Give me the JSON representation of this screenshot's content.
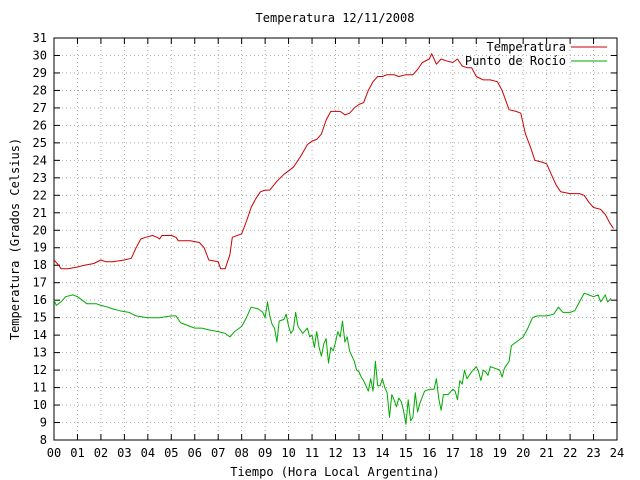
{
  "chart_data": {
    "type": "line",
    "title": "Temperatura 12/11/2008",
    "xlabel": "Tiempo (Hora Local Argentina)",
    "ylabel": "Temperatura (Grados Celsius)",
    "xlim": [
      0,
      24
    ],
    "ylim": [
      8,
      31
    ],
    "x_ticks": [
      "00",
      "01",
      "02",
      "03",
      "04",
      "05",
      "06",
      "07",
      "08",
      "09",
      "10",
      "11",
      "12",
      "13",
      "14",
      "15",
      "16",
      "17",
      "18",
      "19",
      "20",
      "21",
      "22",
      "23",
      "24"
    ],
    "y_ticks": [
      8,
      9,
      10,
      11,
      12,
      13,
      14,
      15,
      16,
      17,
      18,
      19,
      20,
      21,
      22,
      23,
      24,
      25,
      26,
      27,
      28,
      29,
      30,
      31
    ],
    "grid": true,
    "legend_position": "top-right",
    "series": [
      {
        "name": "Temperatura",
        "color": "#cc0000",
        "points": [
          [
            0.0,
            18.3
          ],
          [
            0.2,
            18.0
          ],
          [
            0.3,
            17.8
          ],
          [
            0.6,
            17.8
          ],
          [
            1.0,
            17.9
          ],
          [
            1.3,
            18.0
          ],
          [
            1.7,
            18.1
          ],
          [
            2.0,
            18.3
          ],
          [
            2.2,
            18.2
          ],
          [
            2.5,
            18.2
          ],
          [
            3.0,
            18.3
          ],
          [
            3.3,
            18.4
          ],
          [
            3.5,
            19.0
          ],
          [
            3.7,
            19.5
          ],
          [
            3.9,
            19.6
          ],
          [
            4.2,
            19.7
          ],
          [
            4.4,
            19.6
          ],
          [
            4.5,
            19.5
          ],
          [
            4.6,
            19.7
          ],
          [
            5.0,
            19.7
          ],
          [
            5.2,
            19.6
          ],
          [
            5.3,
            19.4
          ],
          [
            5.8,
            19.4
          ],
          [
            6.2,
            19.3
          ],
          [
            6.4,
            19.0
          ],
          [
            6.6,
            18.3
          ],
          [
            7.0,
            18.2
          ],
          [
            7.1,
            17.8
          ],
          [
            7.3,
            17.8
          ],
          [
            7.5,
            18.6
          ],
          [
            7.6,
            19.6
          ],
          [
            8.0,
            19.8
          ],
          [
            8.2,
            20.5
          ],
          [
            8.4,
            21.3
          ],
          [
            8.6,
            21.8
          ],
          [
            8.8,
            22.2
          ],
          [
            9.0,
            22.3
          ],
          [
            9.2,
            22.3
          ],
          [
            9.5,
            22.8
          ],
          [
            9.8,
            23.2
          ],
          [
            10.0,
            23.4
          ],
          [
            10.2,
            23.6
          ],
          [
            10.5,
            24.2
          ],
          [
            10.8,
            24.9
          ],
          [
            11.0,
            25.1
          ],
          [
            11.2,
            25.2
          ],
          [
            11.4,
            25.5
          ],
          [
            11.6,
            26.3
          ],
          [
            11.8,
            26.8
          ],
          [
            12.0,
            26.8
          ],
          [
            12.2,
            26.8
          ],
          [
            12.4,
            26.6
          ],
          [
            12.6,
            26.7
          ],
          [
            12.8,
            27.0
          ],
          [
            13.0,
            27.2
          ],
          [
            13.2,
            27.3
          ],
          [
            13.4,
            28.0
          ],
          [
            13.6,
            28.5
          ],
          [
            13.8,
            28.8
          ],
          [
            14.0,
            28.8
          ],
          [
            14.2,
            28.9
          ],
          [
            14.5,
            28.9
          ],
          [
            14.7,
            28.8
          ],
          [
            15.0,
            28.9
          ],
          [
            15.3,
            28.9
          ],
          [
            15.5,
            29.2
          ],
          [
            15.7,
            29.6
          ],
          [
            16.0,
            29.8
          ],
          [
            16.1,
            30.1
          ],
          [
            16.3,
            29.5
          ],
          [
            16.5,
            29.8
          ],
          [
            16.7,
            29.7
          ],
          [
            17.0,
            29.6
          ],
          [
            17.2,
            29.8
          ],
          [
            17.4,
            29.4
          ],
          [
            17.6,
            29.3
          ],
          [
            17.8,
            29.3
          ],
          [
            18.0,
            28.8
          ],
          [
            18.3,
            28.6
          ],
          [
            18.6,
            28.6
          ],
          [
            18.9,
            28.5
          ],
          [
            19.1,
            28.0
          ],
          [
            19.4,
            26.9
          ],
          [
            19.7,
            26.8
          ],
          [
            19.9,
            26.7
          ],
          [
            20.1,
            25.5
          ],
          [
            20.3,
            24.8
          ],
          [
            20.5,
            24.0
          ],
          [
            20.8,
            23.9
          ],
          [
            21.0,
            23.8
          ],
          [
            21.2,
            23.2
          ],
          [
            21.4,
            22.6
          ],
          [
            21.6,
            22.2
          ],
          [
            22.0,
            22.1
          ],
          [
            22.4,
            22.1
          ],
          [
            22.6,
            22.0
          ],
          [
            22.8,
            21.6
          ],
          [
            23.0,
            21.3
          ],
          [
            23.3,
            21.2
          ],
          [
            23.5,
            20.9
          ],
          [
            23.7,
            20.4
          ],
          [
            23.85,
            20.1
          ]
        ]
      },
      {
        "name": "Punto de Rocío",
        "color": "#00aa00",
        "points": [
          [
            0.0,
            16.0
          ],
          [
            0.1,
            15.7
          ],
          [
            0.3,
            15.9
          ],
          [
            0.5,
            16.2
          ],
          [
            0.8,
            16.3
          ],
          [
            1.0,
            16.2
          ],
          [
            1.2,
            16.0
          ],
          [
            1.4,
            15.8
          ],
          [
            1.8,
            15.8
          ],
          [
            2.0,
            15.7
          ],
          [
            2.3,
            15.6
          ],
          [
            2.5,
            15.5
          ],
          [
            2.8,
            15.4
          ],
          [
            3.2,
            15.3
          ],
          [
            3.5,
            15.1
          ],
          [
            4.0,
            15.0
          ],
          [
            4.5,
            15.0
          ],
          [
            5.0,
            15.1
          ],
          [
            5.2,
            15.1
          ],
          [
            5.4,
            14.7
          ],
          [
            5.6,
            14.6
          ],
          [
            5.8,
            14.5
          ],
          [
            6.0,
            14.4
          ],
          [
            6.3,
            14.4
          ],
          [
            6.6,
            14.3
          ],
          [
            7.0,
            14.2
          ],
          [
            7.3,
            14.1
          ],
          [
            7.5,
            13.9
          ],
          [
            7.7,
            14.2
          ],
          [
            8.0,
            14.5
          ],
          [
            8.2,
            15.0
          ],
          [
            8.4,
            15.6
          ],
          [
            8.7,
            15.5
          ],
          [
            8.9,
            15.3
          ],
          [
            9.0,
            15.0
          ],
          [
            9.1,
            15.9
          ],
          [
            9.2,
            15.1
          ],
          [
            9.3,
            14.6
          ],
          [
            9.4,
            14.4
          ],
          [
            9.5,
            13.6
          ],
          [
            9.6,
            14.8
          ],
          [
            9.8,
            14.9
          ],
          [
            9.9,
            15.2
          ],
          [
            10.0,
            14.5
          ],
          [
            10.1,
            14.1
          ],
          [
            10.2,
            14.3
          ],
          [
            10.3,
            15.3
          ],
          [
            10.4,
            14.5
          ],
          [
            10.6,
            14.1
          ],
          [
            10.8,
            14.4
          ],
          [
            10.9,
            13.9
          ],
          [
            11.0,
            14.0
          ],
          [
            11.1,
            13.3
          ],
          [
            11.2,
            14.2
          ],
          [
            11.3,
            13.3
          ],
          [
            11.4,
            12.8
          ],
          [
            11.5,
            13.5
          ],
          [
            11.6,
            13.8
          ],
          [
            11.7,
            12.4
          ],
          [
            11.8,
            13.3
          ],
          [
            11.9,
            13.1
          ],
          [
            12.0,
            13.6
          ],
          [
            12.1,
            14.2
          ],
          [
            12.2,
            13.9
          ],
          [
            12.3,
            14.8
          ],
          [
            12.4,
            13.6
          ],
          [
            12.5,
            13.9
          ],
          [
            12.6,
            13.1
          ],
          [
            12.7,
            12.8
          ],
          [
            12.8,
            12.5
          ],
          [
            12.9,
            12.0
          ],
          [
            13.0,
            11.9
          ],
          [
            13.1,
            11.6
          ],
          [
            13.2,
            11.4
          ],
          [
            13.3,
            11.1
          ],
          [
            13.4,
            10.8
          ],
          [
            13.5,
            11.5
          ],
          [
            13.6,
            10.8
          ],
          [
            13.7,
            12.5
          ],
          [
            13.8,
            11.1
          ],
          [
            13.9,
            11.1
          ],
          [
            14.0,
            11.5
          ],
          [
            14.1,
            11.0
          ],
          [
            14.2,
            10.7
          ],
          [
            14.3,
            9.3
          ],
          [
            14.4,
            10.6
          ],
          [
            14.5,
            10.3
          ],
          [
            14.6,
            9.9
          ],
          [
            14.7,
            10.4
          ],
          [
            14.8,
            10.2
          ],
          [
            14.9,
            9.7
          ],
          [
            15.0,
            8.9
          ],
          [
            15.1,
            10.3
          ],
          [
            15.2,
            9.1
          ],
          [
            15.3,
            9.3
          ],
          [
            15.4,
            10.7
          ],
          [
            15.5,
            9.6
          ],
          [
            15.6,
            10.1
          ],
          [
            15.8,
            10.8
          ],
          [
            16.0,
            10.9
          ],
          [
            16.2,
            10.9
          ],
          [
            16.3,
            11.5
          ],
          [
            16.4,
            10.4
          ],
          [
            16.5,
            9.7
          ],
          [
            16.6,
            10.6
          ],
          [
            16.8,
            10.6
          ],
          [
            17.0,
            10.9
          ],
          [
            17.1,
            10.8
          ],
          [
            17.2,
            10.3
          ],
          [
            17.3,
            11.4
          ],
          [
            17.4,
            11.2
          ],
          [
            17.5,
            12.0
          ],
          [
            17.6,
            11.5
          ],
          [
            17.8,
            11.9
          ],
          [
            18.0,
            12.2
          ],
          [
            18.1,
            11.9
          ],
          [
            18.2,
            11.4
          ],
          [
            18.3,
            12.0
          ],
          [
            18.4,
            11.9
          ],
          [
            18.5,
            11.7
          ],
          [
            18.6,
            12.2
          ],
          [
            18.8,
            12.1
          ],
          [
            19.0,
            12.0
          ],
          [
            19.1,
            11.6
          ],
          [
            19.2,
            12.1
          ],
          [
            19.4,
            12.5
          ],
          [
            19.5,
            13.4
          ],
          [
            19.7,
            13.6
          ],
          [
            20.0,
            13.9
          ],
          [
            20.2,
            14.4
          ],
          [
            20.4,
            15.0
          ],
          [
            20.6,
            15.1
          ],
          [
            20.8,
            15.1
          ],
          [
            21.0,
            15.1
          ],
          [
            21.3,
            15.2
          ],
          [
            21.5,
            15.6
          ],
          [
            21.7,
            15.3
          ],
          [
            22.0,
            15.3
          ],
          [
            22.2,
            15.4
          ],
          [
            22.4,
            15.9
          ],
          [
            22.6,
            16.4
          ],
          [
            22.8,
            16.3
          ],
          [
            23.0,
            16.2
          ],
          [
            23.2,
            16.3
          ],
          [
            23.3,
            15.9
          ],
          [
            23.5,
            16.3
          ],
          [
            23.6,
            15.9
          ],
          [
            23.75,
            16.1
          ]
        ]
      }
    ]
  }
}
